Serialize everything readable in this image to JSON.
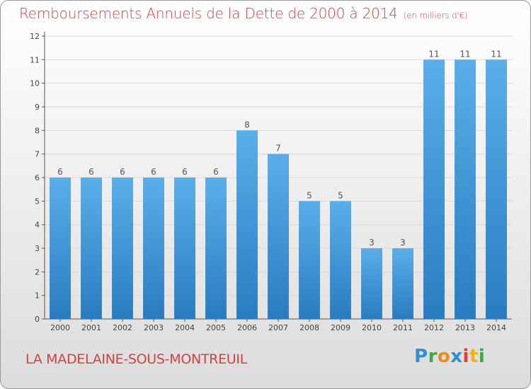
{
  "header": {
    "title": "Remboursements Annuels de la Dette de 2000 à 2014",
    "unit": "(en milliers d'€)"
  },
  "footer": {
    "commune": "LA MADELAINE-SOUS-MONTREUIL",
    "logo": "Proxiti"
  },
  "colors": {
    "bar_top": "#5aaee8",
    "bar_bottom": "#2a7cc0",
    "title": "#cc4444",
    "grid": "#d9d9d9"
  },
  "chart_data": {
    "type": "bar",
    "categories": [
      "2000",
      "2001",
      "2002",
      "2003",
      "2004",
      "2005",
      "2006",
      "2007",
      "2008",
      "2009",
      "2010",
      "2011",
      "2012",
      "2013",
      "2014"
    ],
    "values": [
      6,
      6,
      6,
      6,
      6,
      6,
      8,
      7,
      5,
      5,
      3,
      3,
      11,
      11,
      11
    ],
    "data_labels": [
      "6",
      "6",
      "6",
      "6",
      "6",
      "6",
      "8",
      "7",
      "5",
      "5",
      "3",
      "3",
      "11",
      "11",
      "11"
    ],
    "y_ticks": [
      "0",
      "1",
      "2",
      "3",
      "4",
      "5",
      "6",
      "7",
      "8",
      "9",
      "10",
      "11",
      "12"
    ],
    "ylim": [
      0,
      12
    ],
    "grid": true
  }
}
